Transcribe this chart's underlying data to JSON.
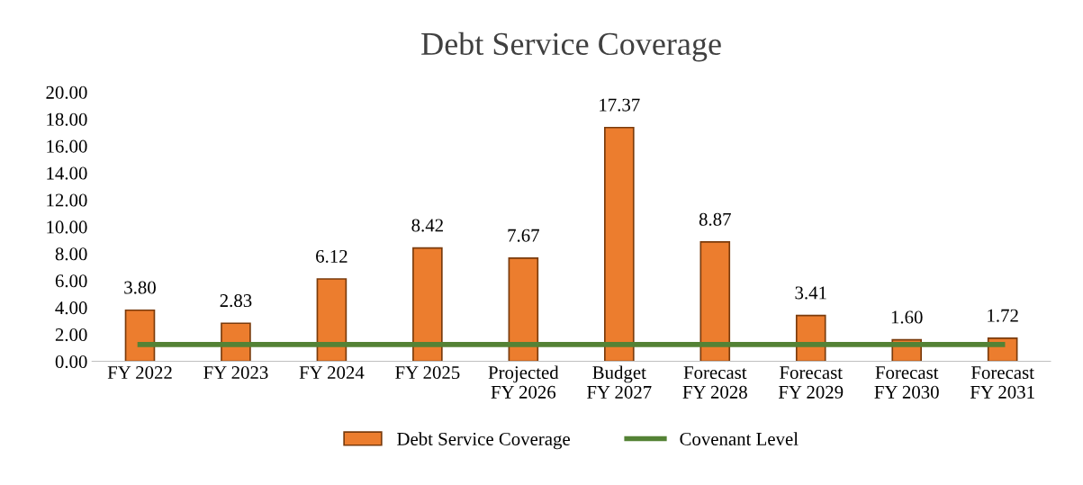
{
  "chart_data": {
    "type": "bar",
    "title": "Debt Service Coverage",
    "categories": [
      "FY 2022",
      "FY 2023",
      "FY 2024",
      "FY 2025",
      "Projected\nFY 2026",
      "Budget\nFY 2027",
      "Forecast\nFY 2028",
      "Forecast\nFY 2029",
      "Forecast\nFY 2030",
      "Forecast\nFY 2031"
    ],
    "series": [
      {
        "name": "Debt Service Coverage",
        "color": "#ec7d2e",
        "values": [
          3.8,
          2.83,
          6.12,
          8.42,
          7.67,
          17.37,
          8.87,
          3.41,
          1.6,
          1.72
        ],
        "value_labels": [
          "3.80",
          "2.83",
          "6.12",
          "8.42",
          "7.67",
          "17.37",
          "8.87",
          "3.41",
          "1.60",
          "1.72"
        ]
      },
      {
        "name": "Covenant Level",
        "type": "line",
        "color": "#548235",
        "values": [
          1.25,
          1.25,
          1.25,
          1.25,
          1.25,
          1.25,
          1.25,
          1.25,
          1.25,
          1.25
        ]
      }
    ],
    "ylim": [
      0,
      20
    ],
    "yticks": [
      {
        "value": 0,
        "label": "0.00"
      },
      {
        "value": 2,
        "label": "2.00"
      },
      {
        "value": 4,
        "label": "4.00"
      },
      {
        "value": 6,
        "label": "6.00"
      },
      {
        "value": 8,
        "label": "8.00"
      },
      {
        "value": 10,
        "label": "10.00"
      },
      {
        "value": 12,
        "label": "12.00"
      },
      {
        "value": 14,
        "label": "14.00"
      },
      {
        "value": 16,
        "label": "16.00"
      },
      {
        "value": 18,
        "label": "18.00"
      },
      {
        "value": 20,
        "label": "20.00"
      }
    ],
    "legend": "bottom",
    "grid": false
  }
}
